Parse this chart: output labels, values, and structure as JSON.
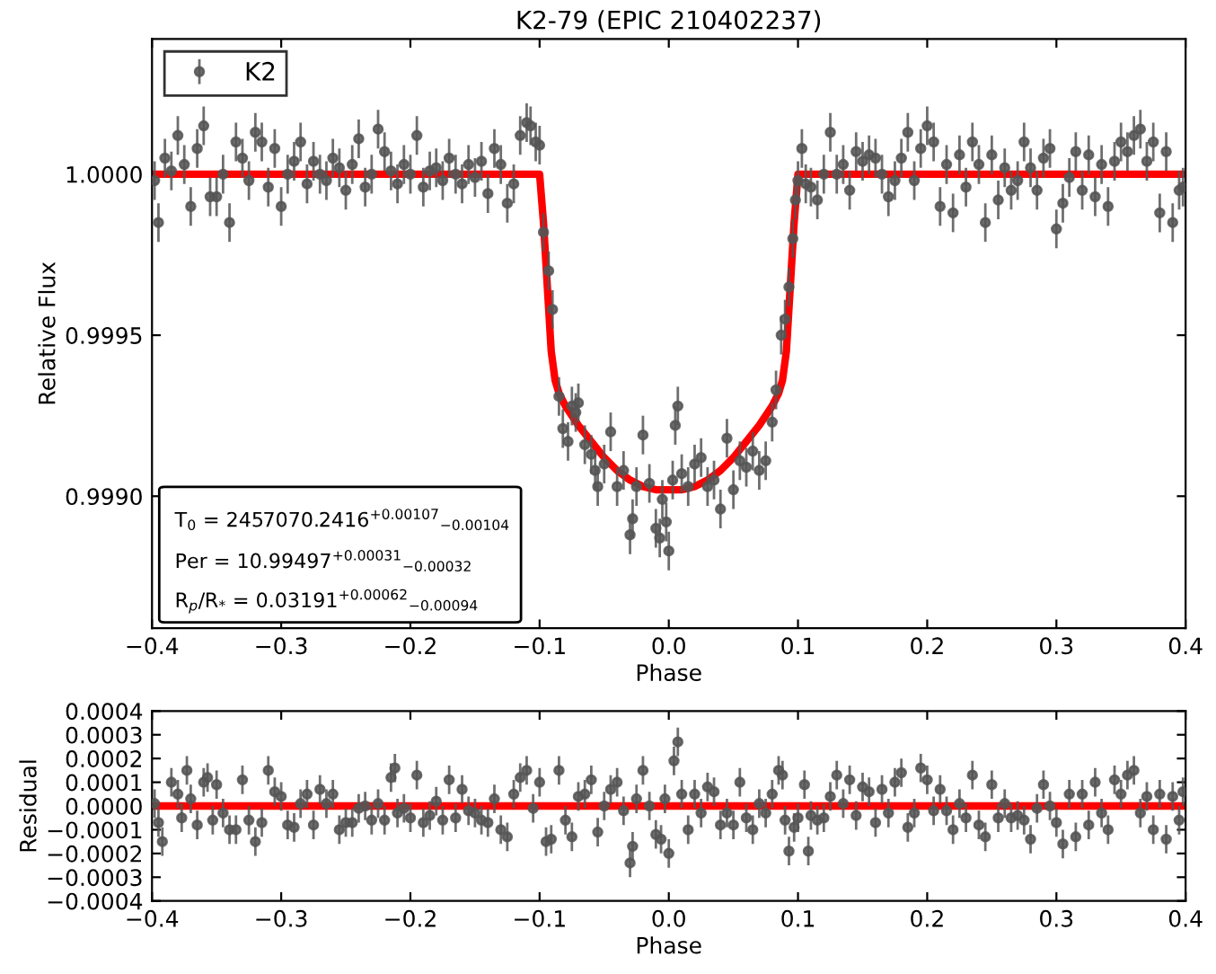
{
  "chart_data": [
    {
      "type": "scatter",
      "title": "K2-79 (EPIC 210402237)",
      "xlabel": "Phase",
      "ylabel": "Relative Flux",
      "xlim": [
        -0.4,
        0.4
      ],
      "ylim": [
        0.99859,
        1.00042
      ],
      "xticks": [
        {
          "value": -0.4,
          "label": "−0.4"
        },
        {
          "value": -0.3,
          "label": "−0.3"
        },
        {
          "value": -0.2,
          "label": "−0.2"
        },
        {
          "value": -0.1,
          "label": "−0.1"
        },
        {
          "value": 0.0,
          "label": "0.0"
        },
        {
          "value": 0.1,
          "label": "0.1"
        },
        {
          "value": 0.2,
          "label": "0.2"
        },
        {
          "value": 0.3,
          "label": "0.3"
        },
        {
          "value": 0.4,
          "label": "0.4"
        }
      ],
      "yticks": [
        {
          "value": 0.999,
          "label": "0.9990"
        },
        {
          "value": 0.9995,
          "label": "0.9995"
        },
        {
          "value": 1.0,
          "label": "1.0000"
        }
      ],
      "grid": false,
      "legend": "top left",
      "annotations": [
        "T$_{0}$ = 2457070.2416$^{+0.00107}$$_{−0.00104}$",
        "Per = 10.99497$^{+0.00031}$$_{−0.00032}$",
        "R$_{p}$/R$_{*}$ = 0.03191$^{+0.00062}$$_{−0.00094}$"
      ],
      "series": [
        {
          "type": "line",
          "color": "#ff0000",
          "x": [
            -0.4,
            -0.1,
            -0.097,
            -0.094,
            -0.091,
            -0.088,
            -0.085,
            -0.08,
            -0.07,
            -0.06,
            -0.05,
            -0.04,
            -0.03,
            -0.02,
            -0.01,
            0.0,
            0.01,
            0.02,
            0.03,
            0.04,
            0.05,
            0.06,
            0.07,
            0.08,
            0.085,
            0.088,
            0.091,
            0.094,
            0.097,
            0.1,
            0.4
          ],
          "values": [
            1.0,
            1.0,
            0.99985,
            0.99965,
            0.99945,
            0.99936,
            0.99932,
            0.99928,
            0.99922,
            0.99917,
            0.99912,
            0.99908,
            0.99905,
            0.99903,
            0.99902,
            0.99902,
            0.99902,
            0.99903,
            0.99905,
            0.99908,
            0.99912,
            0.99917,
            0.99922,
            0.99928,
            0.99932,
            0.99936,
            0.99945,
            0.99965,
            0.99985,
            1.0,
            1.0
          ]
        },
        {
          "name": "K2",
          "color": "#555555",
          "marker": "circle",
          "x": [
            -0.398,
            -0.395,
            -0.39,
            -0.385,
            -0.38,
            -0.375,
            -0.37,
            -0.365,
            -0.36,
            -0.355,
            -0.35,
            -0.345,
            -0.34,
            -0.335,
            -0.33,
            -0.325,
            -0.32,
            -0.315,
            -0.31,
            -0.305,
            -0.3,
            -0.295,
            -0.29,
            -0.285,
            -0.28,
            -0.275,
            -0.27,
            -0.265,
            -0.26,
            -0.255,
            -0.25,
            -0.245,
            -0.24,
            -0.235,
            -0.23,
            -0.225,
            -0.22,
            -0.215,
            -0.21,
            -0.205,
            -0.2,
            -0.195,
            -0.19,
            -0.185,
            -0.18,
            -0.175,
            -0.17,
            -0.165,
            -0.16,
            -0.155,
            -0.15,
            -0.145,
            -0.14,
            -0.135,
            -0.13,
            -0.125,
            -0.12,
            -0.115,
            -0.11,
            -0.107,
            -0.103,
            -0.1,
            -0.097,
            -0.093,
            -0.09,
            -0.085,
            -0.082,
            -0.078,
            -0.075,
            -0.072,
            -0.07,
            -0.065,
            -0.06,
            -0.057,
            -0.055,
            -0.05,
            -0.045,
            -0.04,
            -0.035,
            -0.03,
            -0.028,
            -0.025,
            -0.02,
            -0.015,
            -0.01,
            -0.007,
            -0.005,
            -0.002,
            0.0,
            0.003,
            0.005,
            0.007,
            0.01,
            0.015,
            0.02,
            0.025,
            0.03,
            0.035,
            0.04,
            0.045,
            0.05,
            0.055,
            0.06,
            0.065,
            0.07,
            0.075,
            0.08,
            0.083,
            0.087,
            0.09,
            0.093,
            0.096,
            0.098,
            0.1,
            0.103,
            0.106,
            0.11,
            0.115,
            0.12,
            0.125,
            0.13,
            0.135,
            0.14,
            0.145,
            0.15,
            0.155,
            0.16,
            0.165,
            0.17,
            0.175,
            0.18,
            0.185,
            0.19,
            0.195,
            0.2,
            0.205,
            0.21,
            0.215,
            0.22,
            0.225,
            0.23,
            0.235,
            0.24,
            0.245,
            0.25,
            0.255,
            0.26,
            0.265,
            0.27,
            0.275,
            0.28,
            0.285,
            0.29,
            0.295,
            0.3,
            0.305,
            0.31,
            0.315,
            0.32,
            0.325,
            0.33,
            0.335,
            0.34,
            0.345,
            0.35,
            0.355,
            0.36,
            0.365,
            0.37,
            0.375,
            0.38,
            0.385,
            0.39,
            0.395,
            0.398
          ],
          "values": [
            0.99998,
            0.99985,
            1.00005,
            1.00001,
            1.00012,
            1.00003,
            0.9999,
            1.00008,
            1.00015,
            0.99993,
            0.99993,
            1.0,
            0.99985,
            1.0001,
            1.00005,
            0.99998,
            1.00013,
            1.0001,
            0.99996,
            1.00008,
            0.9999,
            1.0,
            1.00004,
            1.0001,
            0.99997,
            1.00004,
            1.0,
            0.99998,
            1.00005,
            1.00002,
            0.99995,
            1.00003,
            1.00011,
            0.99996,
            1.0,
            1.00014,
            1.00007,
            1.00001,
            0.99997,
            1.00003,
            1.0,
            1.00012,
            0.99996,
            1.00001,
            1.00002,
            0.99998,
            1.00005,
            1.0,
            0.99997,
            1.00003,
            0.99999,
            1.00004,
            0.99994,
            1.00008,
            1.00003,
            0.99991,
            0.99997,
            1.00012,
            1.00016,
            1.00015,
            1.0001,
            1.00009,
            0.99982,
            0.9997,
            0.99958,
            0.99931,
            0.99921,
            0.99917,
            0.99928,
            0.99926,
            0.99929,
            0.99916,
            0.99913,
            0.99908,
            0.99903,
            0.9991,
            0.9992,
            0.99903,
            0.99908,
            0.99888,
            0.99893,
            0.99903,
            0.99919,
            0.99904,
            0.9989,
            0.99887,
            0.99899,
            0.99892,
            0.99883,
            0.99905,
            0.99922,
            0.99928,
            0.99907,
            0.99903,
            0.9991,
            0.99912,
            0.99903,
            0.99905,
            0.99896,
            0.99918,
            0.99902,
            0.99911,
            0.99909,
            0.99914,
            0.99908,
            0.99911,
            0.99923,
            0.99933,
            0.9995,
            0.99955,
            0.99965,
            0.9998,
            0.99992,
            0.99998,
            1.00008,
            0.99997,
            0.99996,
            0.99992,
            1.0,
            1.00013,
            1.0,
            1.00003,
            0.99995,
            1.00007,
            1.00004,
            1.00006,
            1.00005,
            1.0,
            0.99993,
            0.99998,
            1.00005,
            1.00013,
            0.99998,
            1.00008,
            1.00015,
            1.0001,
            0.9999,
            1.00003,
            0.99988,
            1.00006,
            0.99996,
            1.0001,
            1.00003,
            0.99985,
            1.00006,
            0.99992,
            1.00002,
            0.99995,
            0.99998,
            1.0001,
            1.00002,
            0.99995,
            1.00005,
            1.00008,
            0.99983,
            0.99991,
            0.99999,
            1.00007,
            0.99995,
            1.00006,
            0.99993,
            1.00003,
            0.9999,
            1.00004,
            1.0001,
            1.00007,
            1.00012,
            1.00014,
            1.00004,
            1.0001,
            0.99988,
            1.00007,
            0.99985,
            0.99995,
            0.99996
          ],
          "errors": [
            6e-05,
            6e-05,
            6e-05,
            6e-05,
            6e-05,
            6e-05,
            6e-05,
            6e-05,
            6e-05,
            6e-05,
            6e-05,
            6e-05,
            6e-05,
            6e-05,
            6e-05,
            6e-05,
            6e-05,
            6e-05,
            6e-05,
            6e-05,
            6e-05,
            6e-05,
            6e-05,
            6e-05,
            6e-05,
            6e-05,
            6e-05,
            6e-05,
            6e-05,
            6e-05,
            6e-05,
            6e-05,
            6e-05,
            6e-05,
            6e-05,
            6e-05,
            6e-05,
            6e-05,
            6e-05,
            6e-05,
            6e-05,
            6e-05,
            6e-05,
            6e-05,
            6e-05,
            6e-05,
            6e-05,
            6e-05,
            6e-05,
            6e-05,
            6e-05,
            6e-05,
            6e-05,
            6e-05,
            6e-05,
            6e-05,
            6e-05,
            6e-05,
            6e-05,
            6e-05,
            6e-05,
            6e-05,
            6e-05,
            6e-05,
            6e-05,
            6e-05,
            6e-05,
            6e-05,
            6e-05,
            6e-05,
            6e-05,
            6e-05,
            6e-05,
            6e-05,
            6e-05,
            6e-05,
            6e-05,
            6e-05,
            6e-05,
            6e-05,
            6e-05,
            6e-05,
            6e-05,
            6e-05,
            6e-05,
            6e-05,
            6e-05,
            6e-05,
            6e-05,
            6e-05,
            6e-05,
            6e-05,
            6e-05,
            6e-05,
            6e-05,
            6e-05,
            6e-05,
            6e-05,
            6e-05,
            6e-05,
            6e-05,
            6e-05,
            6e-05,
            6e-05,
            6e-05,
            6e-05,
            6e-05,
            6e-05,
            6e-05,
            6e-05,
            6e-05,
            6e-05,
            6e-05,
            6e-05,
            6e-05,
            6e-05,
            6e-05,
            6e-05,
            6e-05,
            6e-05,
            6e-05,
            6e-05,
            6e-05,
            6e-05,
            6e-05,
            6e-05,
            6e-05,
            6e-05,
            6e-05,
            6e-05,
            6e-05,
            6e-05,
            6e-05,
            6e-05,
            6e-05,
            6e-05,
            6e-05,
            6e-05,
            6e-05,
            6e-05,
            6e-05,
            6e-05,
            6e-05,
            6e-05,
            6e-05,
            6e-05,
            6e-05,
            6e-05,
            6e-05,
            6e-05,
            6e-05,
            6e-05,
            6e-05,
            6e-05,
            6e-05,
            6e-05,
            6e-05,
            6e-05,
            6e-05,
            6e-05,
            6e-05,
            6e-05,
            6e-05,
            6e-05,
            6e-05,
            6e-05,
            6e-05,
            6e-05,
            6e-05,
            6e-05,
            6e-05,
            6e-05,
            6e-05,
            6e-05,
            6e-05
          ]
        }
      ]
    },
    {
      "type": "scatter",
      "xlabel": "Phase",
      "ylabel": "Residual",
      "xlim": [
        -0.4,
        0.4
      ],
      "ylim": [
        -0.0004,
        0.0004
      ],
      "xticks": [
        {
          "value": -0.4,
          "label": "−0.4"
        },
        {
          "value": -0.3,
          "label": "−0.3"
        },
        {
          "value": -0.2,
          "label": "−0.2"
        },
        {
          "value": -0.1,
          "label": "−0.1"
        },
        {
          "value": 0.0,
          "label": "0.0"
        },
        {
          "value": 0.1,
          "label": "0.1"
        },
        {
          "value": 0.2,
          "label": "0.2"
        },
        {
          "value": 0.3,
          "label": "0.3"
        },
        {
          "value": 0.4,
          "label": "0.4"
        }
      ],
      "yticks": [
        {
          "value": -0.0004,
          "label": "−0.0004"
        },
        {
          "value": -0.0003,
          "label": "−0.0003"
        },
        {
          "value": -0.0002,
          "label": "−0.0002"
        },
        {
          "value": -0.0001,
          "label": "−0.0001"
        },
        {
          "value": 0.0,
          "label": "0.0000"
        },
        {
          "value": 0.0001,
          "label": "0.0001"
        },
        {
          "value": 0.0002,
          "label": "0.0002"
        },
        {
          "value": 0.0003,
          "label": "0.0003"
        },
        {
          "value": 0.0004,
          "label": "0.0004"
        }
      ],
      "grid": false,
      "series": [
        {
          "type": "line",
          "color": "#ff0000",
          "x": [
            -0.4,
            0.4
          ],
          "values": [
            0.0,
            0.0
          ]
        },
        {
          "color": "#555555",
          "marker": "circle",
          "x": [
            -0.398,
            -0.395,
            -0.392,
            -0.385,
            -0.38,
            -0.377,
            -0.373,
            -0.37,
            -0.365,
            -0.36,
            -0.357,
            -0.353,
            -0.35,
            -0.345,
            -0.34,
            -0.335,
            -0.33,
            -0.325,
            -0.32,
            -0.315,
            -0.31,
            -0.305,
            -0.3,
            -0.295,
            -0.29,
            -0.285,
            -0.28,
            -0.275,
            -0.27,
            -0.265,
            -0.26,
            -0.255,
            -0.25,
            -0.245,
            -0.24,
            -0.235,
            -0.23,
            -0.225,
            -0.22,
            -0.215,
            -0.212,
            -0.21,
            -0.205,
            -0.2,
            -0.195,
            -0.19,
            -0.185,
            -0.18,
            -0.175,
            -0.17,
            -0.165,
            -0.16,
            -0.155,
            -0.15,
            -0.145,
            -0.14,
            -0.135,
            -0.13,
            -0.125,
            -0.12,
            -0.115,
            -0.11,
            -0.105,
            -0.1,
            -0.095,
            -0.091,
            -0.085,
            -0.08,
            -0.075,
            -0.07,
            -0.065,
            -0.06,
            -0.055,
            -0.05,
            -0.045,
            -0.04,
            -0.035,
            -0.03,
            -0.028,
            -0.025,
            -0.02,
            -0.015,
            -0.01,
            -0.006,
            -0.003,
            0.0,
            0.004,
            0.007,
            0.01,
            0.015,
            0.02,
            0.025,
            0.03,
            0.035,
            0.04,
            0.045,
            0.05,
            0.055,
            0.06,
            0.065,
            0.07,
            0.075,
            0.08,
            0.085,
            0.088,
            0.09,
            0.093,
            0.097,
            0.1,
            0.105,
            0.108,
            0.11,
            0.115,
            0.12,
            0.125,
            0.13,
            0.135,
            0.14,
            0.145,
            0.15,
            0.155,
            0.16,
            0.165,
            0.17,
            0.175,
            0.18,
            0.185,
            0.19,
            0.195,
            0.2,
            0.205,
            0.21,
            0.215,
            0.22,
            0.225,
            0.23,
            0.235,
            0.24,
            0.245,
            0.25,
            0.255,
            0.26,
            0.265,
            0.27,
            0.275,
            0.28,
            0.285,
            0.29,
            0.295,
            0.3,
            0.305,
            0.31,
            0.315,
            0.32,
            0.325,
            0.33,
            0.335,
            0.34,
            0.345,
            0.35,
            0.355,
            0.36,
            0.365,
            0.37,
            0.375,
            0.38,
            0.385,
            0.39,
            0.395,
            0.398
          ],
          "values": [
            1e-05,
            -7e-05,
            -0.00015,
            0.0001,
            5e-05,
            -5e-05,
            0.00015,
            3e-05,
            -8e-05,
            0.0001,
            0.00012,
            -6e-05,
            9e-05,
            -3e-05,
            -0.0001,
            -0.0001,
            0.00011,
            -6e-05,
            -0.00015,
            -7e-05,
            0.00015,
            6e-05,
            4e-05,
            -8e-05,
            -9e-05,
            1e-05,
            5e-05,
            -8e-05,
            7e-05,
            1e-05,
            5e-05,
            -0.0001,
            -7e-05,
            -7e-05,
            -1e-05,
            0.0,
            -6e-05,
            1e-05,
            -6e-05,
            0.00012,
            0.00016,
            -3e-05,
            -1e-05,
            -5e-05,
            0.00013,
            -7e-05,
            -4e-05,
            2e-05,
            -6e-05,
            0.00011,
            -5e-05,
            7e-05,
            -2e-05,
            -3e-05,
            -6e-05,
            -7e-05,
            3e-05,
            -0.0001,
            -0.00013,
            5e-05,
            0.00012,
            0.00015,
            -1e-05,
            0.0001,
            -0.00015,
            -0.00014,
            0.00015,
            -6e-05,
            -0.00013,
            4e-05,
            5e-05,
            0.00011,
            -0.00011,
            0.0,
            7e-05,
            0.0001,
            -2e-05,
            -0.00024,
            -0.00017,
            3e-05,
            0.00015,
            0.0,
            -0.00012,
            -0.00014,
            3e-05,
            -0.0002,
            0.00019,
            0.00027,
            5e-05,
            -0.0001,
            5e-05,
            -3e-05,
            8e-05,
            6e-05,
            -8e-05,
            -3e-05,
            -8e-05,
            0.0001,
            -5e-05,
            -0.0001,
            1e-05,
            -3e-05,
            5e-05,
            0.00015,
            0.00013,
            -6e-05,
            -0.00019,
            -9e-05,
            -5e-05,
            9e-05,
            -0.00019,
            -4e-05,
            -6e-05,
            -5e-05,
            4e-05,
            0.00013,
            1e-05,
            0.00011,
            -4e-05,
            8e-05,
            6e-05,
            -7e-05,
            7e-05,
            -3e-05,
            0.0001,
            0.00014,
            -9e-05,
            -3e-05,
            0.00016,
            0.00011,
            -2e-05,
            7e-05,
            -2e-05,
            -0.0001,
            1e-05,
            -5e-05,
            0.00013,
            -8e-05,
            -0.00013,
            9e-05,
            -5e-05,
            1e-05,
            -5e-05,
            -4e-05,
            -6e-05,
            -0.00014,
            -1e-05,
            9e-05,
            0.0,
            -7e-05,
            -0.00016,
            5e-05,
            -0.00013,
            5e-05,
            -8e-05,
            0.0001,
            -3e-05,
            -0.0001,
            0.00011,
            5e-05,
            0.00013,
            0.00015,
            -3e-05,
            4e-05,
            -0.0001,
            5e-05,
            -0.00014,
            4e-05,
            -6e-05,
            6e-05
          ],
          "errors": [
            6e-05,
            6e-05,
            6e-05,
            6e-05,
            6e-05,
            6e-05,
            6e-05,
            6e-05,
            6e-05,
            6e-05,
            6e-05,
            6e-05,
            6e-05,
            6e-05,
            6e-05,
            6e-05,
            6e-05,
            6e-05,
            6e-05,
            6e-05,
            6e-05,
            6e-05,
            6e-05,
            6e-05,
            6e-05,
            6e-05,
            6e-05,
            6e-05,
            6e-05,
            6e-05,
            6e-05,
            6e-05,
            6e-05,
            6e-05,
            6e-05,
            6e-05,
            6e-05,
            6e-05,
            6e-05,
            6e-05,
            6e-05,
            6e-05,
            6e-05,
            6e-05,
            6e-05,
            6e-05,
            6e-05,
            6e-05,
            6e-05,
            6e-05,
            6e-05,
            6e-05,
            6e-05,
            6e-05,
            6e-05,
            6e-05,
            6e-05,
            6e-05,
            6e-05,
            6e-05,
            6e-05,
            6e-05,
            6e-05,
            6e-05,
            6e-05,
            6e-05,
            6e-05,
            6e-05,
            6e-05,
            6e-05,
            6e-05,
            6e-05,
            6e-05,
            6e-05,
            6e-05,
            6e-05,
            6e-05,
            6e-05,
            6e-05,
            6e-05,
            6e-05,
            6e-05,
            6e-05,
            6e-05,
            6e-05,
            6e-05,
            6e-05,
            6e-05,
            6e-05,
            6e-05,
            6e-05,
            6e-05,
            6e-05,
            6e-05,
            6e-05,
            6e-05,
            6e-05,
            6e-05,
            6e-05,
            6e-05,
            6e-05,
            6e-05,
            6e-05,
            6e-05,
            6e-05,
            6e-05,
            6e-05,
            6e-05,
            6e-05,
            6e-05,
            6e-05,
            6e-05,
            6e-05,
            6e-05,
            6e-05,
            6e-05,
            6e-05,
            6e-05,
            6e-05,
            6e-05,
            6e-05,
            6e-05,
            6e-05,
            6e-05,
            6e-05,
            6e-05,
            6e-05,
            6e-05,
            6e-05,
            6e-05,
            6e-05,
            6e-05,
            6e-05,
            6e-05,
            6e-05,
            6e-05,
            6e-05,
            6e-05,
            6e-05,
            6e-05,
            6e-05,
            6e-05,
            6e-05,
            6e-05,
            6e-05,
            6e-05,
            6e-05,
            6e-05,
            6e-05,
            6e-05,
            6e-05,
            6e-05,
            6e-05,
            6e-05,
            6e-05,
            6e-05,
            6e-05,
            6e-05,
            6e-05,
            6e-05,
            6e-05,
            6e-05,
            6e-05,
            6e-05,
            6e-05,
            6e-05,
            6e-05,
            6e-05,
            6e-05,
            6e-05
          ]
        }
      ]
    }
  ]
}
